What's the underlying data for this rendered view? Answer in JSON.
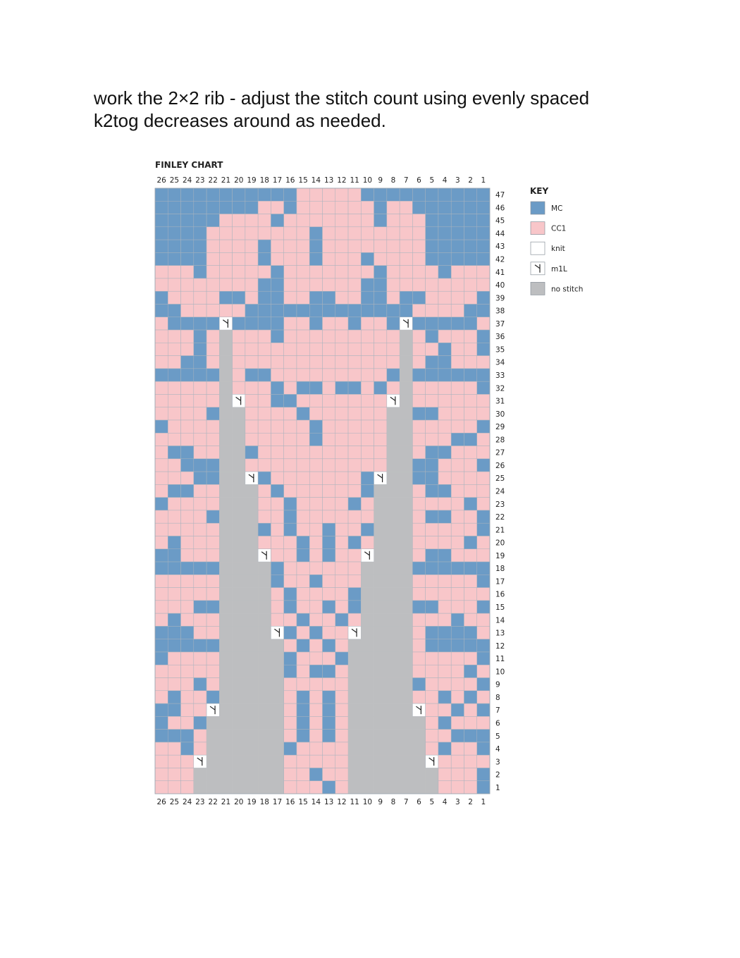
{
  "text": {
    "lines": [
      "work the 2×2 rib - adjust the stitch count using evenly spaced",
      "k2tog decreases around as needed."
    ]
  },
  "chart": {
    "title": "FINLEY CHART",
    "columns": [
      26,
      25,
      24,
      23,
      22,
      21,
      20,
      19,
      18,
      17,
      16,
      15,
      14,
      13,
      12,
      11,
      10,
      9,
      8,
      7,
      6,
      5,
      4,
      3,
      2,
      1
    ],
    "rows": [
      47,
      46,
      45,
      44,
      43,
      42,
      41,
      40,
      39,
      38,
      37,
      36,
      35,
      34,
      33,
      32,
      31,
      30,
      29,
      28,
      27,
      26,
      25,
      24,
      23,
      22,
      21,
      20,
      19,
      18,
      17,
      16,
      15,
      14,
      13,
      12,
      11,
      10,
      9,
      8,
      7,
      6,
      5,
      4,
      3,
      2,
      1
    ]
  },
  "key": {
    "title": "KEY",
    "items": [
      {
        "label": "MC",
        "color": "#6b9bc6"
      },
      {
        "label": "CC1",
        "color": "#f8c6c9"
      },
      {
        "label": "knit",
        "color": "#ffffff"
      },
      {
        "label": "m1L",
        "color": "#ffffff"
      },
      {
        "label": "no stitch",
        "color": "#bdbec0"
      }
    ]
  }
}
